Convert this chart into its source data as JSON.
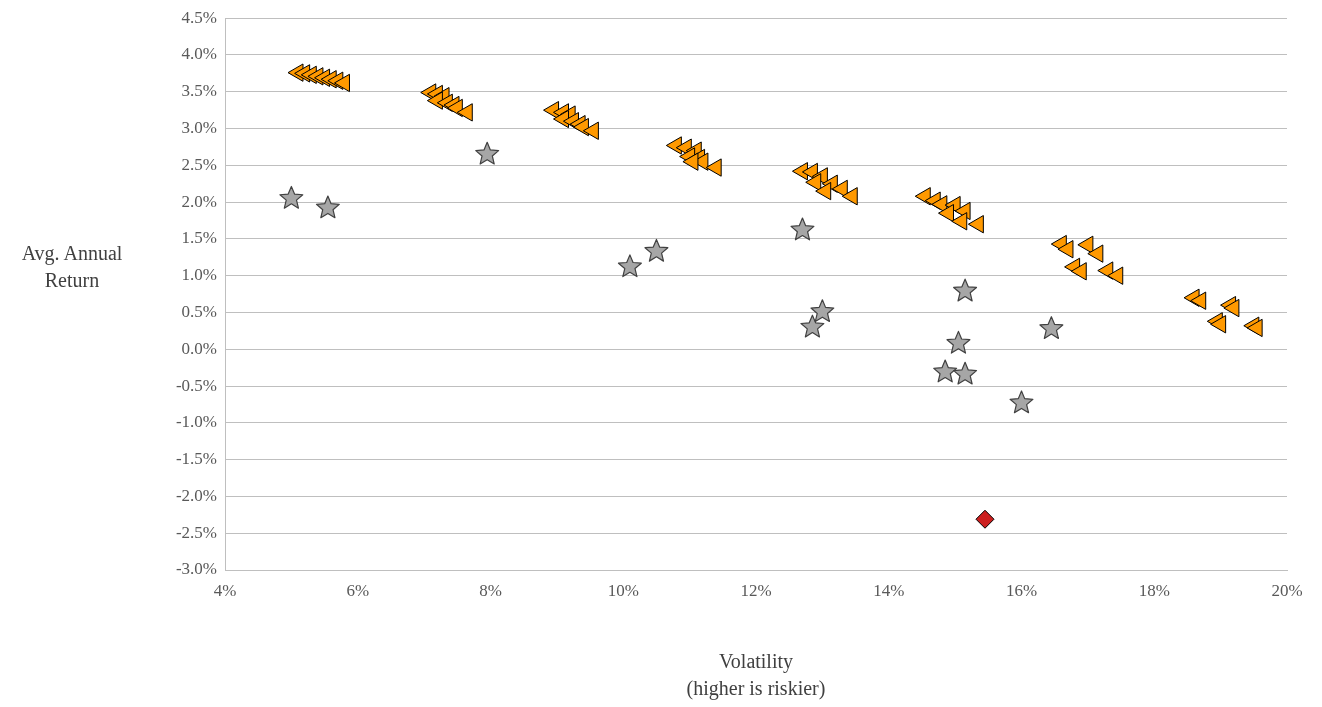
{
  "chart_data": {
    "type": "scatter",
    "xlabel": "Volatility\n(higher is riskier)",
    "ylabel": "Avg. Annual Return",
    "xlim": [
      4,
      20
    ],
    "xticks": [
      {
        "value": 4,
        "label": "4%"
      },
      {
        "value": 6,
        "label": "6%"
      },
      {
        "value": 8,
        "label": "8%"
      },
      {
        "value": 10,
        "label": "10%"
      },
      {
        "value": 12,
        "label": "12%"
      },
      {
        "value": 14,
        "label": "14%"
      },
      {
        "value": 16,
        "label": "16%"
      },
      {
        "value": 18,
        "label": "18%"
      },
      {
        "value": 20,
        "label": "20%"
      }
    ],
    "ylim": [
      -3,
      4.5
    ],
    "yticks": [
      {
        "value": -3,
        "label": "-3.0%"
      },
      {
        "value": -2.5,
        "label": "-2.5%"
      },
      {
        "value": -2,
        "label": "-2.0%"
      },
      {
        "value": -1.5,
        "label": "-1.5%"
      },
      {
        "value": -1,
        "label": "-1.0%"
      },
      {
        "value": -0.5,
        "label": "-0.5%"
      },
      {
        "value": 0,
        "label": "0.0%"
      },
      {
        "value": 0.5,
        "label": "0.5%"
      },
      {
        "value": 1,
        "label": "1.0%"
      },
      {
        "value": 1.5,
        "label": "1.5%"
      },
      {
        "value": 2,
        "label": "2.0%"
      },
      {
        "value": 2.5,
        "label": "2.5%"
      },
      {
        "value": 3,
        "label": "3.0%"
      },
      {
        "value": 3.5,
        "label": "3.5%"
      },
      {
        "value": 4,
        "label": "4.0%"
      },
      {
        "value": 4.5,
        "label": "4.5%"
      }
    ],
    "grid": "y",
    "legend": false,
    "series": [
      {
        "color": "#ff9900",
        "marker": "triangle",
        "x": [
          5.1,
          5.2,
          5.3,
          5.4,
          5.5,
          5.6,
          5.7,
          5.8,
          7.1,
          7.2,
          7.3,
          7.2,
          7.35,
          7.45,
          7.5,
          7.65,
          8.95,
          9.1,
          9.2,
          9.1,
          9.25,
          9.35,
          9.4,
          9.55,
          10.8,
          10.95,
          11.1,
          11.0,
          11.15,
          11.2,
          11.05,
          11.4,
          12.7,
          12.85,
          13.0,
          12.9,
          13.15,
          13.05,
          13.3,
          13.45,
          14.55,
          14.7,
          14.8,
          15.0,
          14.9,
          15.15,
          15.1,
          15.35,
          16.6,
          16.7,
          17.0,
          17.15,
          16.8,
          16.9,
          17.3,
          17.45,
          18.6,
          18.7,
          19.15,
          19.2,
          18.95,
          19.0,
          19.5,
          19.55
        ],
        "values": [
          3.76,
          3.75,
          3.73,
          3.71,
          3.69,
          3.67,
          3.65,
          3.62,
          3.49,
          3.47,
          3.44,
          3.38,
          3.35,
          3.32,
          3.28,
          3.22,
          3.25,
          3.22,
          3.19,
          3.13,
          3.1,
          3.06,
          3.02,
          2.97,
          2.77,
          2.74,
          2.7,
          2.62,
          2.6,
          2.55,
          2.55,
          2.47,
          2.42,
          2.41,
          2.35,
          2.27,
          2.25,
          2.15,
          2.18,
          2.08,
          2.08,
          2.02,
          1.97,
          1.96,
          1.85,
          1.88,
          1.74,
          1.7,
          1.43,
          1.36,
          1.42,
          1.3,
          1.12,
          1.06,
          1.07,
          1.0,
          0.7,
          0.66,
          0.6,
          0.56,
          0.38,
          0.34,
          0.32,
          0.29
        ]
      },
      {
        "color": "#a6a6a6",
        "marker": "star",
        "x": [
          5.0,
          5.55,
          7.95,
          10.1,
          10.5,
          12.7,
          12.85,
          13.0,
          15.15,
          15.05,
          14.85,
          15.15,
          16.0,
          16.45
        ],
        "values": [
          2.05,
          1.92,
          2.65,
          1.12,
          1.33,
          1.62,
          0.3,
          0.51,
          0.79,
          0.08,
          -0.31,
          -0.34,
          -0.73,
          0.28
        ]
      },
      {
        "color": "#cc1f1f",
        "marker": "diamond",
        "x": [
          15.45
        ],
        "values": [
          -2.31
        ]
      }
    ]
  }
}
